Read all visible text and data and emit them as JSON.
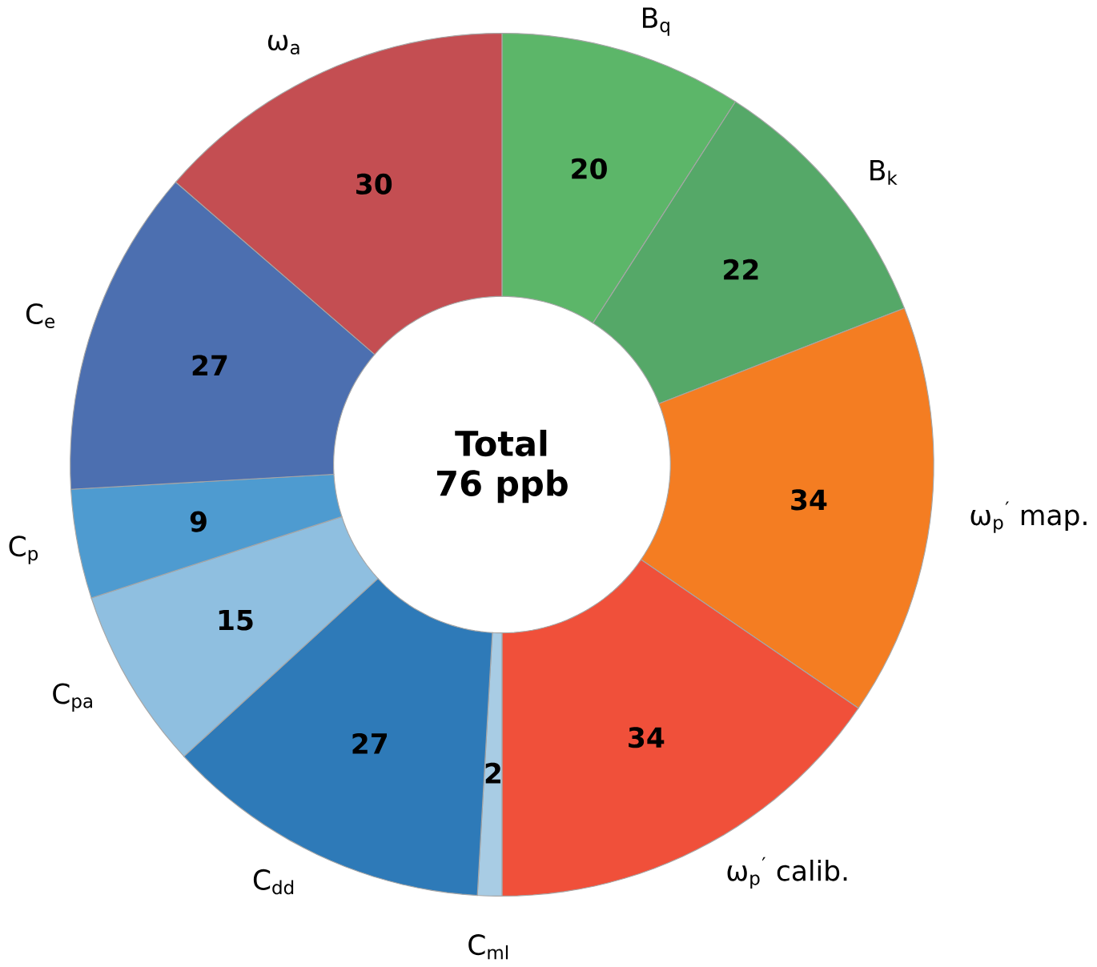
{
  "chart_data": {
    "type": "donut",
    "categories": [
      "B$_{q}$",
      "B$_{k}$",
      "ω$_{p}$$^{′}$ map.",
      "ω$_{p}$$^{′}$ calib.",
      "C$_{ml}$",
      "C$_{dd}$",
      "C$_{pa}$",
      "C$_{p}$",
      "C$_{e}$",
      "ω$_{a}$"
    ],
    "values": [
      20,
      22,
      34,
      34,
      2,
      27,
      15,
      9,
      27,
      30
    ],
    "colors": [
      "#5cb669",
      "#55a868",
      "#f47d22",
      "#f0503a",
      "#a8cce4",
      "#2e7ab8",
      "#8fbfe0",
      "#4e9bd0",
      "#4c6fb0",
      "#c44e52"
    ],
    "data_labels": true,
    "annotations": [
      "Total",
      "76 ppb"
    ]
  }
}
